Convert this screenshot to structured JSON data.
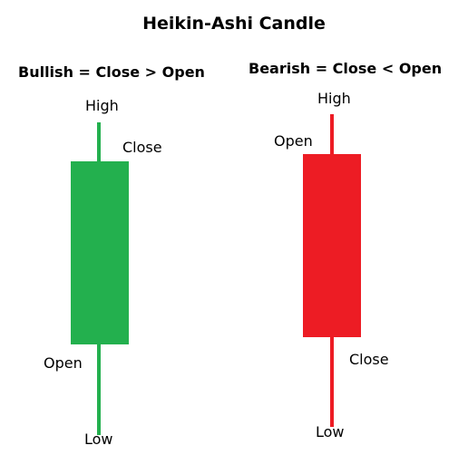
{
  "title": "Heikin-Ashi Candle",
  "bullish": {
    "heading": "Bullish = Close > Open",
    "color": "#23b04e",
    "labels": {
      "high": "High",
      "close": "Close",
      "open": "Open",
      "low": "Low"
    }
  },
  "bearish": {
    "heading": "Bearish = Close < Open",
    "color": "#ed1c24",
    "labels": {
      "high": "High",
      "open": "Open",
      "close": "Close",
      "low": "Low"
    }
  }
}
